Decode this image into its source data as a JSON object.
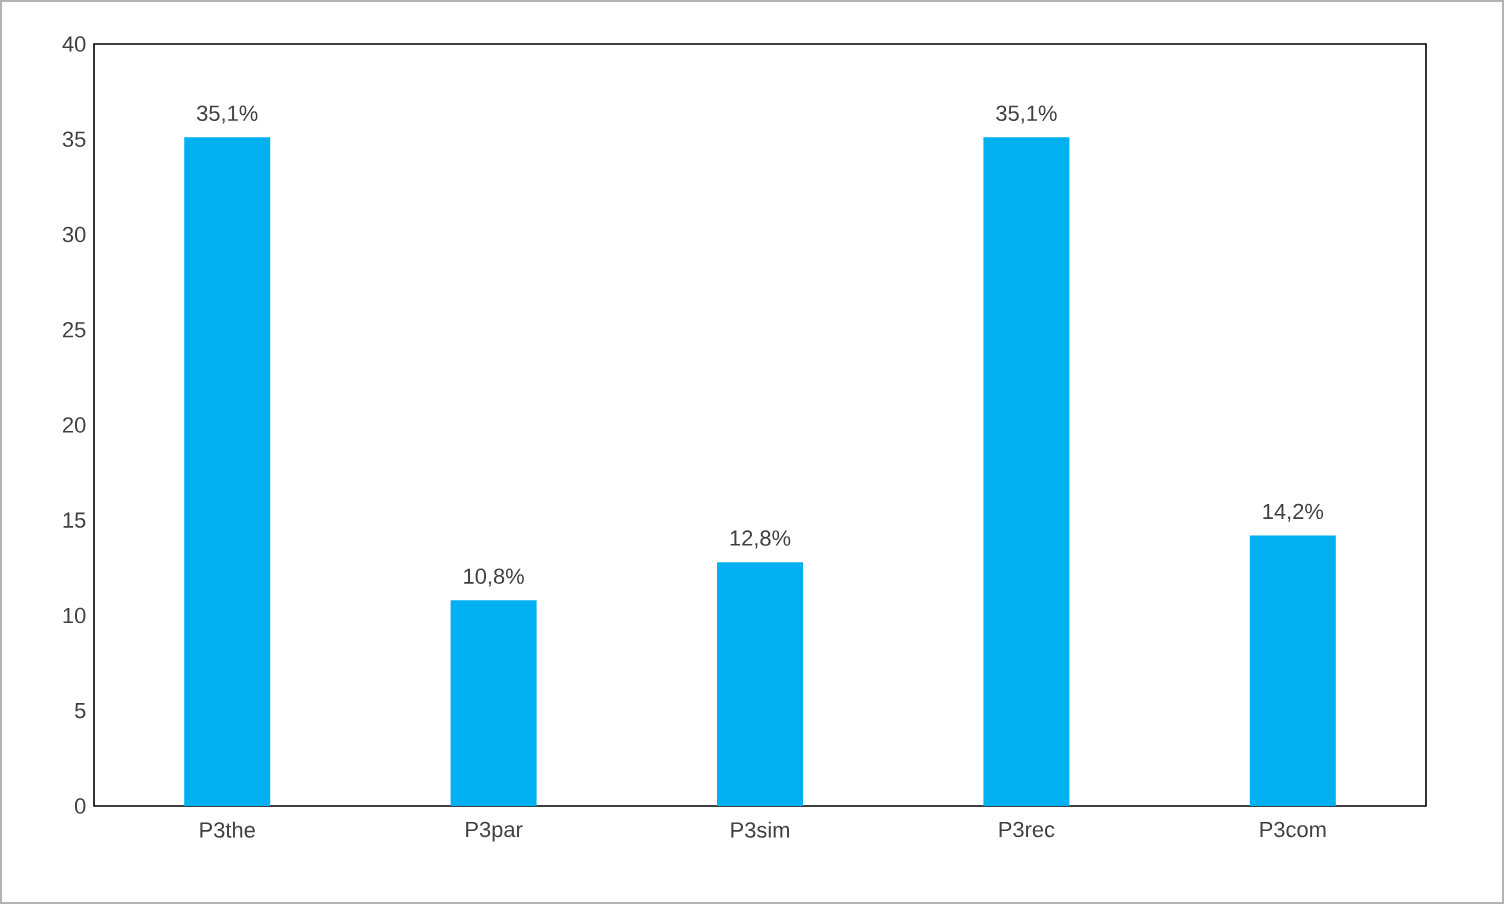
{
  "chart_data": {
    "type": "bar",
    "categories": [
      "P3the",
      "P3par",
      "P3sim",
      "P3rec",
      "P3com"
    ],
    "values": [
      35.1,
      10.8,
      12.8,
      35.1,
      14.2
    ],
    "value_labels": [
      "35,1%",
      "10,8%",
      "12,8%",
      "35,1%",
      "14,2%"
    ],
    "color": "#00b0f0",
    "ylim": [
      0,
      40
    ],
    "yticks": [
      0,
      5,
      10,
      15,
      20,
      25,
      30,
      35,
      40
    ]
  }
}
